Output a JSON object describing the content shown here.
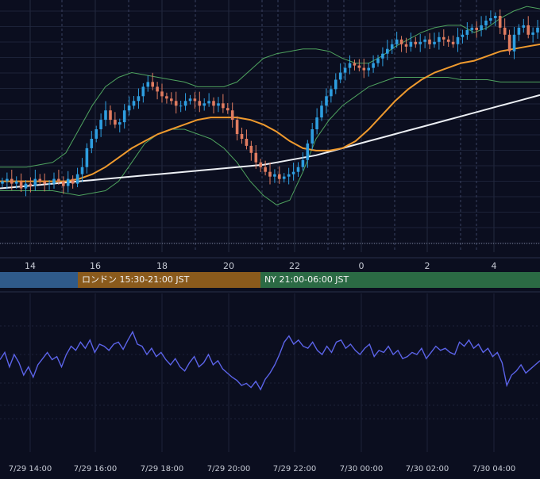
{
  "colors": {
    "background": "#0b0e1f",
    "grid": "#1c2238",
    "candle_up": "#2e9ee0",
    "candle_down": "#e07c60",
    "bollinger": "#4fa35f",
    "ma_short": "#ef9a2e",
    "ma_long": "#eceff4",
    "oscillator": "#5b63e8",
    "session_tokyo": "#2f5a8a",
    "session_london": "#8a5a1c",
    "session_ny": "#2b6a44",
    "axis_text": "#c8ccd6"
  },
  "sessions": [
    {
      "name": "tokyo",
      "label": ""
    },
    {
      "name": "london",
      "label": "ロンドン 15:30-21:00 JST"
    },
    {
      "name": "ny",
      "label": "NY 21:00-06:00 JST"
    }
  ],
  "chart_data": [
    {
      "type": "candlestick",
      "x_ticks": [
        "14",
        "16",
        "18",
        "20",
        "22",
        "0",
        "2",
        "4"
      ],
      "ylim": [
        0,
        100
      ],
      "grid": true,
      "series": [
        {
          "name": "",
          "kind": "close",
          "values": [
            30,
            31,
            29,
            30,
            27,
            29,
            28,
            31,
            30,
            29,
            29,
            31,
            30,
            28,
            31,
            29,
            33,
            36,
            44,
            48,
            52,
            56,
            60,
            56,
            54,
            55,
            60,
            62,
            64,
            66,
            70,
            72,
            70,
            68,
            66,
            65,
            64,
            62,
            62,
            64,
            65,
            64,
            62,
            63,
            64,
            62,
            63,
            61,
            60,
            56,
            50,
            48,
            45,
            42,
            38,
            36,
            34,
            32,
            33,
            31,
            32,
            33,
            34,
            36,
            39,
            46,
            52,
            57,
            62,
            66,
            69,
            73,
            76,
            78,
            80,
            79,
            78,
            77,
            78,
            80,
            82,
            84,
            86,
            88,
            90,
            88,
            87,
            89,
            88,
            89,
            90,
            88,
            89,
            91,
            90,
            89,
            88,
            91,
            92,
            94,
            95,
            94,
            96,
            98,
            99,
            100,
            95,
            92,
            85,
            92,
            95,
            96,
            92,
            93,
            95
          ]
        },
        {
          "name": "",
          "kind": "bollinger_upper",
          "values": [
            36,
            36,
            36,
            37,
            38,
            42,
            52,
            62,
            70,
            74,
            76,
            75,
            74,
            73,
            72,
            70,
            70,
            70,
            72,
            77,
            82,
            84,
            85,
            86,
            86,
            85,
            82,
            80,
            80,
            83,
            87,
            90,
            93,
            95,
            96,
            96,
            93,
            95,
            99,
            102,
            104,
            103
          ]
        },
        {
          "name": "",
          "kind": "bollinger_lower",
          "values": [
            26,
            26,
            26,
            26,
            26,
            25,
            24,
            25,
            26,
            30,
            38,
            46,
            50,
            52,
            52,
            50,
            48,
            44,
            38,
            30,
            24,
            20,
            22,
            34,
            48,
            56,
            62,
            66,
            70,
            72,
            74,
            74,
            74,
            74,
            74,
            73,
            73,
            73,
            72,
            72,
            72,
            72
          ]
        },
        {
          "name": "",
          "kind": "ma_short",
          "values": [
            30,
            30,
            30,
            30,
            30,
            30,
            31,
            33,
            36,
            40,
            44,
            47,
            50,
            52,
            54,
            56,
            57,
            57,
            57,
            56,
            54,
            51,
            47,
            44,
            43,
            43,
            44,
            47,
            52,
            58,
            64,
            69,
            73,
            76,
            78,
            80,
            81,
            83,
            85,
            86,
            87,
            88
          ]
        },
        {
          "name": "",
          "kind": "ma_long",
          "values": [
            27,
            27.5,
            28,
            28.5,
            29,
            29.5,
            30,
            30.5,
            31,
            31.5,
            32,
            32.5,
            33,
            33.5,
            34,
            34.5,
            35,
            35.5,
            36,
            36.5,
            37,
            38,
            39,
            40,
            41,
            42.5,
            44,
            45.5,
            47,
            48.5,
            50,
            51.5,
            53,
            54.5,
            56,
            57.5,
            59,
            60.5,
            62,
            63.5,
            65,
            66.5
          ]
        }
      ]
    },
    {
      "type": "line",
      "x_ticks": [
        "7/29 14:00",
        "7/29 16:00",
        "7/29 18:00",
        "7/29 20:00",
        "7/29 22:00",
        "7/30 00:00",
        "7/30 02:00",
        "7/30 04:00"
      ],
      "ylim": [
        0,
        100
      ],
      "grid": true,
      "series": [
        {
          "name": "",
          "values": [
            55,
            62,
            48,
            60,
            52,
            40,
            48,
            38,
            50,
            56,
            62,
            55,
            58,
            48,
            60,
            68,
            64,
            72,
            66,
            74,
            62,
            70,
            68,
            64,
            70,
            72,
            65,
            74,
            82,
            70,
            68,
            60,
            66,
            58,
            62,
            55,
            50,
            56,
            48,
            44,
            52,
            58,
            48,
            52,
            60,
            50,
            54,
            46,
            42,
            38,
            35,
            30,
            32,
            28,
            34,
            26,
            36,
            42,
            50,
            60,
            72,
            78,
            70,
            74,
            68,
            66,
            72,
            64,
            60,
            68,
            62,
            72,
            74,
            66,
            70,
            64,
            60,
            66,
            70,
            58,
            64,
            62,
            68,
            60,
            64,
            56,
            58,
            62,
            60,
            66,
            56,
            62,
            68,
            64,
            66,
            62,
            60,
            72,
            68,
            74,
            66,
            70,
            62,
            66,
            58,
            62,
            52,
            30,
            40,
            44,
            50,
            42,
            46,
            50,
            54
          ]
        }
      ]
    }
  ]
}
